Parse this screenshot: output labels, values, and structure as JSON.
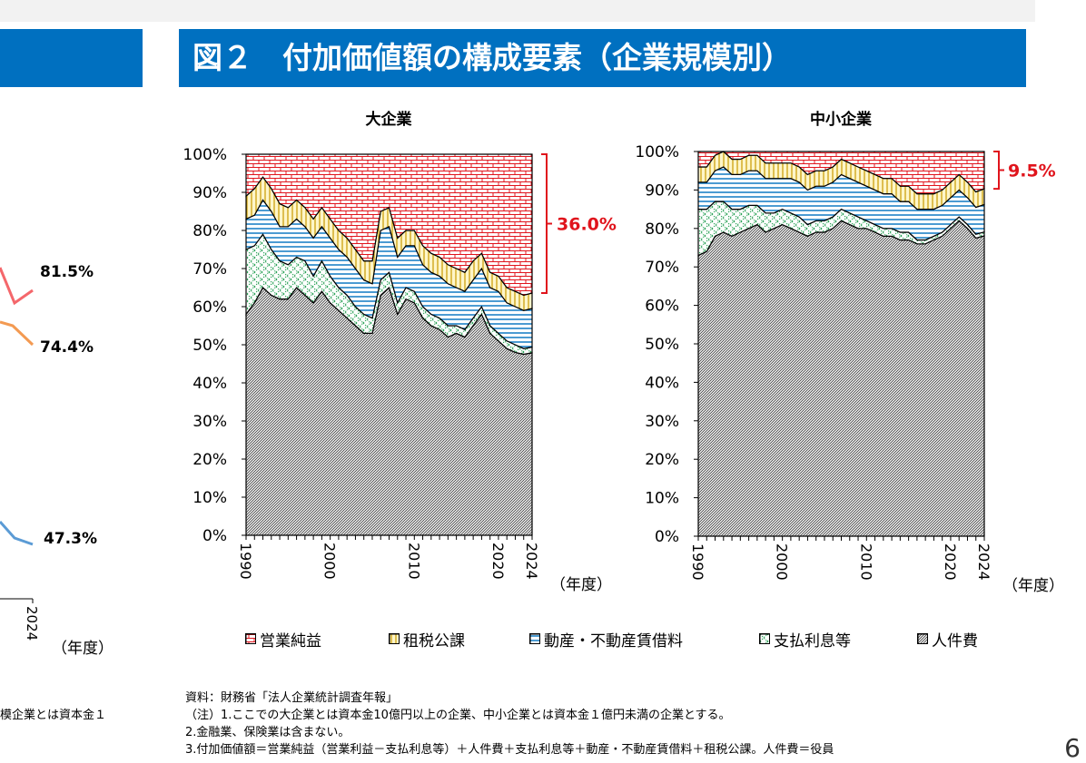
{
  "title": "図２　付加価値額の構成要素（企業規模別）",
  "left_partial": {
    "labels": [
      "81.5%",
      "74.4%",
      "47.3%"
    ],
    "x_tick": "2024",
    "x_unit": "（年度）",
    "note_fragment": "模企業とは資本金１",
    "series_colors": [
      "#f4676b",
      "#f39a52",
      "#5b9bd5"
    ]
  },
  "colors": {
    "blue": "#0070c0",
    "red": "#e0141c",
    "gold": "#c79a00",
    "green": "#1c9c4c",
    "labor": "#9c9c9c"
  },
  "chart_data": [
    {
      "type": "area",
      "title": "大企業",
      "x": [
        1990,
        1991,
        1992,
        1993,
        1994,
        1995,
        1996,
        1997,
        1998,
        1999,
        2000,
        2001,
        2002,
        2003,
        2004,
        2005,
        2006,
        2007,
        2008,
        2009,
        2010,
        2011,
        2012,
        2013,
        2014,
        2015,
        2016,
        2017,
        2018,
        2019,
        2020,
        2021,
        2022,
        2023,
        2024
      ],
      "x_ticks": [
        "1990",
        "2000",
        "2010",
        "2020",
        "2024"
      ],
      "x_unit": "（年度）",
      "y_ticks": [
        "0%",
        "10%",
        "20%",
        "30%",
        "40%",
        "50%",
        "60%",
        "70%",
        "80%",
        "90%",
        "100%"
      ],
      "ylim": [
        0,
        100
      ],
      "stack_order_bottom_to_top": [
        "人件費",
        "支払利息等",
        "動産・不動産賃借料",
        "租税公課",
        "営業純益"
      ],
      "series": [
        {
          "name": "人件費",
          "values": [
            58,
            61,
            65,
            63,
            62,
            62,
            65,
            63,
            61,
            64,
            61,
            59,
            57,
            55,
            53,
            53,
            63,
            65,
            58,
            62,
            61,
            57,
            55,
            54,
            52,
            53,
            52,
            55,
            58,
            53,
            51,
            49,
            48,
            47.5,
            47.3
          ]
        },
        {
          "name": "支払利息等",
          "values": [
            17,
            15,
            14,
            12,
            10,
            9,
            8,
            9,
            7,
            8,
            7,
            6,
            6,
            5,
            5,
            4,
            4,
            4,
            3,
            3,
            3,
            3,
            3,
            3,
            3,
            2,
            2,
            2,
            2,
            2,
            2,
            2,
            2,
            1.5,
            1.5
          ]
        },
        {
          "name": "動産・不動産賃借料",
          "values": [
            8,
            8,
            9,
            10,
            9,
            10,
            10,
            9,
            10,
            9,
            10,
            10,
            10,
            10,
            9,
            9,
            13,
            12,
            12,
            11,
            12,
            11,
            11,
            11,
            11,
            10,
            10,
            10,
            10,
            10,
            11,
            10,
            10,
            10,
            10
          ]
        },
        {
          "name": "租税公課",
          "values": [
            6,
            7,
            6,
            6,
            6,
            5,
            5,
            5,
            5,
            5,
            5,
            5,
            5,
            5,
            5,
            6,
            5,
            5,
            5,
            4,
            4,
            5,
            5,
            5,
            5,
            5,
            5,
            5,
            4,
            4,
            4,
            4,
            4,
            4,
            4
          ]
        },
        {
          "name": "営業純益",
          "values": [
            11,
            9,
            6,
            9,
            13,
            14,
            12,
            14,
            17,
            14,
            17,
            20,
            22,
            25,
            28,
            28,
            15,
            14,
            22,
            20,
            20,
            24,
            26,
            27,
            29,
            30,
            31,
            28,
            26,
            31,
            32,
            35,
            36,
            37,
            36
          ]
        }
      ],
      "annotation": "36.0%"
    },
    {
      "type": "area",
      "title": "中小企業",
      "x": [
        1990,
        1991,
        1992,
        1993,
        1994,
        1995,
        1996,
        1997,
        1998,
        1999,
        2000,
        2001,
        2002,
        2003,
        2004,
        2005,
        2006,
        2007,
        2008,
        2009,
        2010,
        2011,
        2012,
        2013,
        2014,
        2015,
        2016,
        2017,
        2018,
        2019,
        2020,
        2021,
        2022,
        2023,
        2024
      ],
      "x_ticks": [
        "1990",
        "2000",
        "2010",
        "2020",
        "2024"
      ],
      "x_unit": "（年度）",
      "y_ticks": [
        "0%",
        "10%",
        "20%",
        "30%",
        "40%",
        "50%",
        "60%",
        "70%",
        "80%",
        "90%",
        "100%"
      ],
      "ylim": [
        0,
        100
      ],
      "stack_order_bottom_to_top": [
        "人件費",
        "支払利息等",
        "動産・不動産賃借料",
        "租税公課",
        "営業純益"
      ],
      "series": [
        {
          "name": "人件費",
          "values": [
            73,
            74,
            78,
            79,
            78,
            79,
            80,
            81,
            79,
            80,
            81,
            80,
            79,
            78,
            79,
            79,
            80,
            82,
            81,
            80,
            80,
            79,
            78,
            78,
            77,
            77,
            76,
            76,
            77,
            78,
            80,
            82,
            80,
            77.5,
            76.5
          ]
        },
        {
          "name": "支払利息等",
          "values": [
            12,
            11,
            9,
            8,
            7,
            6,
            6,
            5,
            5,
            4,
            4,
            4,
            4,
            3,
            3,
            3,
            3,
            3,
            3,
            3,
            2,
            2,
            2,
            2,
            2,
            2,
            1,
            1,
            1,
            1,
            1,
            1,
            1,
            1,
            1
          ]
        },
        {
          "name": "動産・不動産賃借料",
          "values": [
            7,
            7,
            8,
            9,
            9,
            9,
            9,
            9,
            9,
            9,
            8,
            9,
            9,
            9,
            9,
            9,
            9,
            9,
            9,
            9,
            9,
            9,
            9,
            9,
            8,
            8,
            8,
            8,
            7,
            7,
            7,
            7,
            7,
            7,
            7
          ]
        },
        {
          "name": "租税公課",
          "values": [
            4,
            4,
            4,
            4,
            4,
            4,
            4,
            4,
            4,
            4,
            4,
            4,
            4,
            4,
            4,
            4,
            4,
            4,
            4,
            4,
            4,
            4,
            4,
            4,
            4,
            4,
            4,
            4,
            4,
            4,
            4,
            4,
            4,
            4,
            4
          ]
        },
        {
          "name": "営業純益",
          "values": [
            4,
            4,
            1,
            0,
            2,
            2,
            1,
            1,
            3,
            3,
            3,
            3,
            4,
            6,
            5,
            5,
            4,
            2,
            3,
            4,
            5,
            6,
            7,
            7,
            9,
            9,
            11,
            11,
            11,
            10,
            8,
            6,
            8,
            10.5,
            9.5
          ]
        }
      ],
      "annotation": "9.5%"
    }
  ],
  "legend": [
    {
      "label": "営業純益",
      "key": "profit"
    },
    {
      "label": "租税公課",
      "key": "tax"
    },
    {
      "label": "動産・不動産賃借料",
      "key": "rent"
    },
    {
      "label": "支払利息等",
      "key": "interest"
    },
    {
      "label": "人件費",
      "key": "labor"
    }
  ],
  "notes": [
    "資料：財務省「法人企業統計調査年報」",
    "（注）1.ここでの大企業とは資本金10億円以上の企業、中小企業とは資本金１億円未満の企業とする。",
    "2.金融業、保険業は含まない。",
    "3.付加価値額＝営業純益（営業利益－支払利息等）＋人件費＋支払利息等＋動産・不動産賃借料＋租税公課。人件費＝役員"
  ],
  "page_number": "6"
}
